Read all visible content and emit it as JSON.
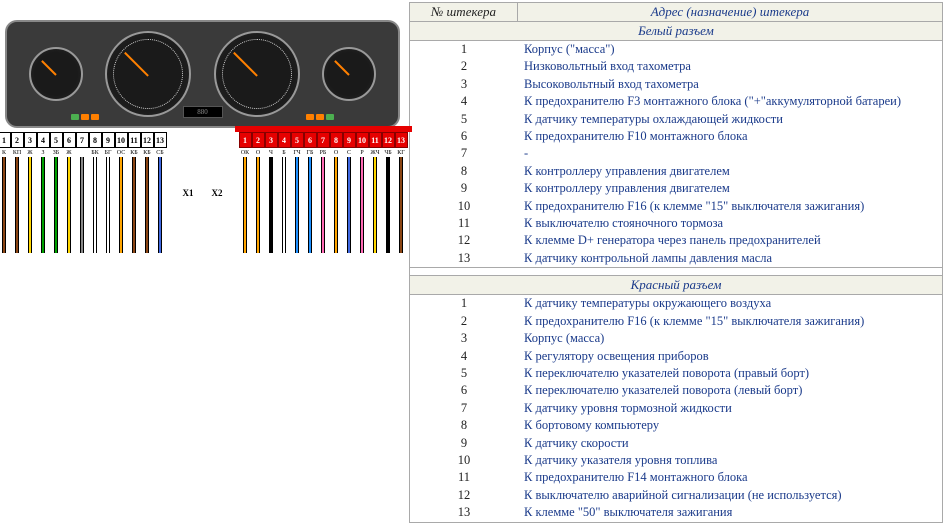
{
  "table": {
    "header_num": "№ штекера",
    "header_desc": "Адрес (назначение) штекера",
    "white_section": "Белый разъем",
    "red_section": "Красный разъем",
    "white_rows": [
      {
        "n": "1",
        "d": "Корпус (\"масса\")"
      },
      {
        "n": "2",
        "d": "Низковольтный вход тахометра"
      },
      {
        "n": "3",
        "d": "Высоковольтный вход тахометра"
      },
      {
        "n": "4",
        "d": "К предохранителю F3 монтажного блока (\"+\"аккумуляторной батареи)"
      },
      {
        "n": "5",
        "d": "К датчику температуры охлаждающей жидкости"
      },
      {
        "n": "6",
        "d": "К предохранителю F10 монтажного блока"
      },
      {
        "n": "7",
        "d": "-"
      },
      {
        "n": "8",
        "d": "К контроллеру управления двигателем"
      },
      {
        "n": "9",
        "d": "К контроллеру управления двигателем"
      },
      {
        "n": "10",
        "d": "К предохранителю F16 (к клемме \"15\" выключателя зажигания)"
      },
      {
        "n": "11",
        "d": "К выключателю стояночного тормоза"
      },
      {
        "n": "12",
        "d": "К клемме D+ генератора через панель предохранителей"
      },
      {
        "n": "13",
        "d": "К датчику контрольной лампы давления масла"
      }
    ],
    "red_rows": [
      {
        "n": "1",
        "d": "К датчику температуры окружающего воздуха"
      },
      {
        "n": "2",
        "d": "К предохранителю F16 (к клемме \"15\" выключателя зажигания)"
      },
      {
        "n": "3",
        "d": "Корпус (масса)"
      },
      {
        "n": "4",
        "d": "К регулятору освещения приборов"
      },
      {
        "n": "5",
        "d": "К переключателю указателей поворота (правый борт)"
      },
      {
        "n": "6",
        "d": "К переключателю указателей поворота (левый борт)"
      },
      {
        "n": "7",
        "d": "К датчику уровня тормозной жидкости"
      },
      {
        "n": "8",
        "d": "К бортовому компьютеру"
      },
      {
        "n": "9",
        "d": "К датчику скорости"
      },
      {
        "n": "10",
        "d": "К датчику указателя уровня топлива"
      },
      {
        "n": "11",
        "d": "К предохранителю F14 монтажного блока"
      },
      {
        "n": "12",
        "d": "К выключателю аварийной сигнализации (не используется)"
      },
      {
        "n": "13",
        "d": "К клемме \"50\" выключателя зажигания"
      }
    ]
  },
  "connectors": {
    "x1_label": "X1",
    "x2_label": "X2",
    "pins": [
      "1",
      "2",
      "3",
      "4",
      "5",
      "6",
      "7",
      "8",
      "9",
      "10",
      "11",
      "12",
      "13"
    ],
    "white_wire_labels": [
      "К",
      "КП",
      "Ж",
      "З",
      "ЗБ",
      "Ж",
      "",
      "БК",
      "БГ",
      "ОС",
      "КБ",
      "КБ",
      "СБ"
    ],
    "red_wire_labels": [
      "ОК",
      "О",
      "Ч",
      "Б",
      "ГЧ",
      "ГБ",
      "РБ",
      "О",
      "С",
      "Р",
      "ЖЧ",
      "ЧБ",
      "КГ"
    ],
    "white_wire_colors": [
      "#8b4513",
      "#8b4513",
      "#ffd700",
      "#00a000",
      "#00a000",
      "#ffd700",
      "#888888",
      "#ffffff",
      "#ffffff",
      "#ffa500",
      "#8b4513",
      "#8b4513",
      "#4169e1"
    ],
    "red_wire_colors": [
      "#ffa500",
      "#ffa500",
      "#000000",
      "#ffffff",
      "#1e90ff",
      "#1e90ff",
      "#ff69b4",
      "#ffa500",
      "#4169e1",
      "#ff69b4",
      "#ffd700",
      "#000000",
      "#8b4513"
    ]
  },
  "dashboard": {
    "lcd_text": "880"
  }
}
